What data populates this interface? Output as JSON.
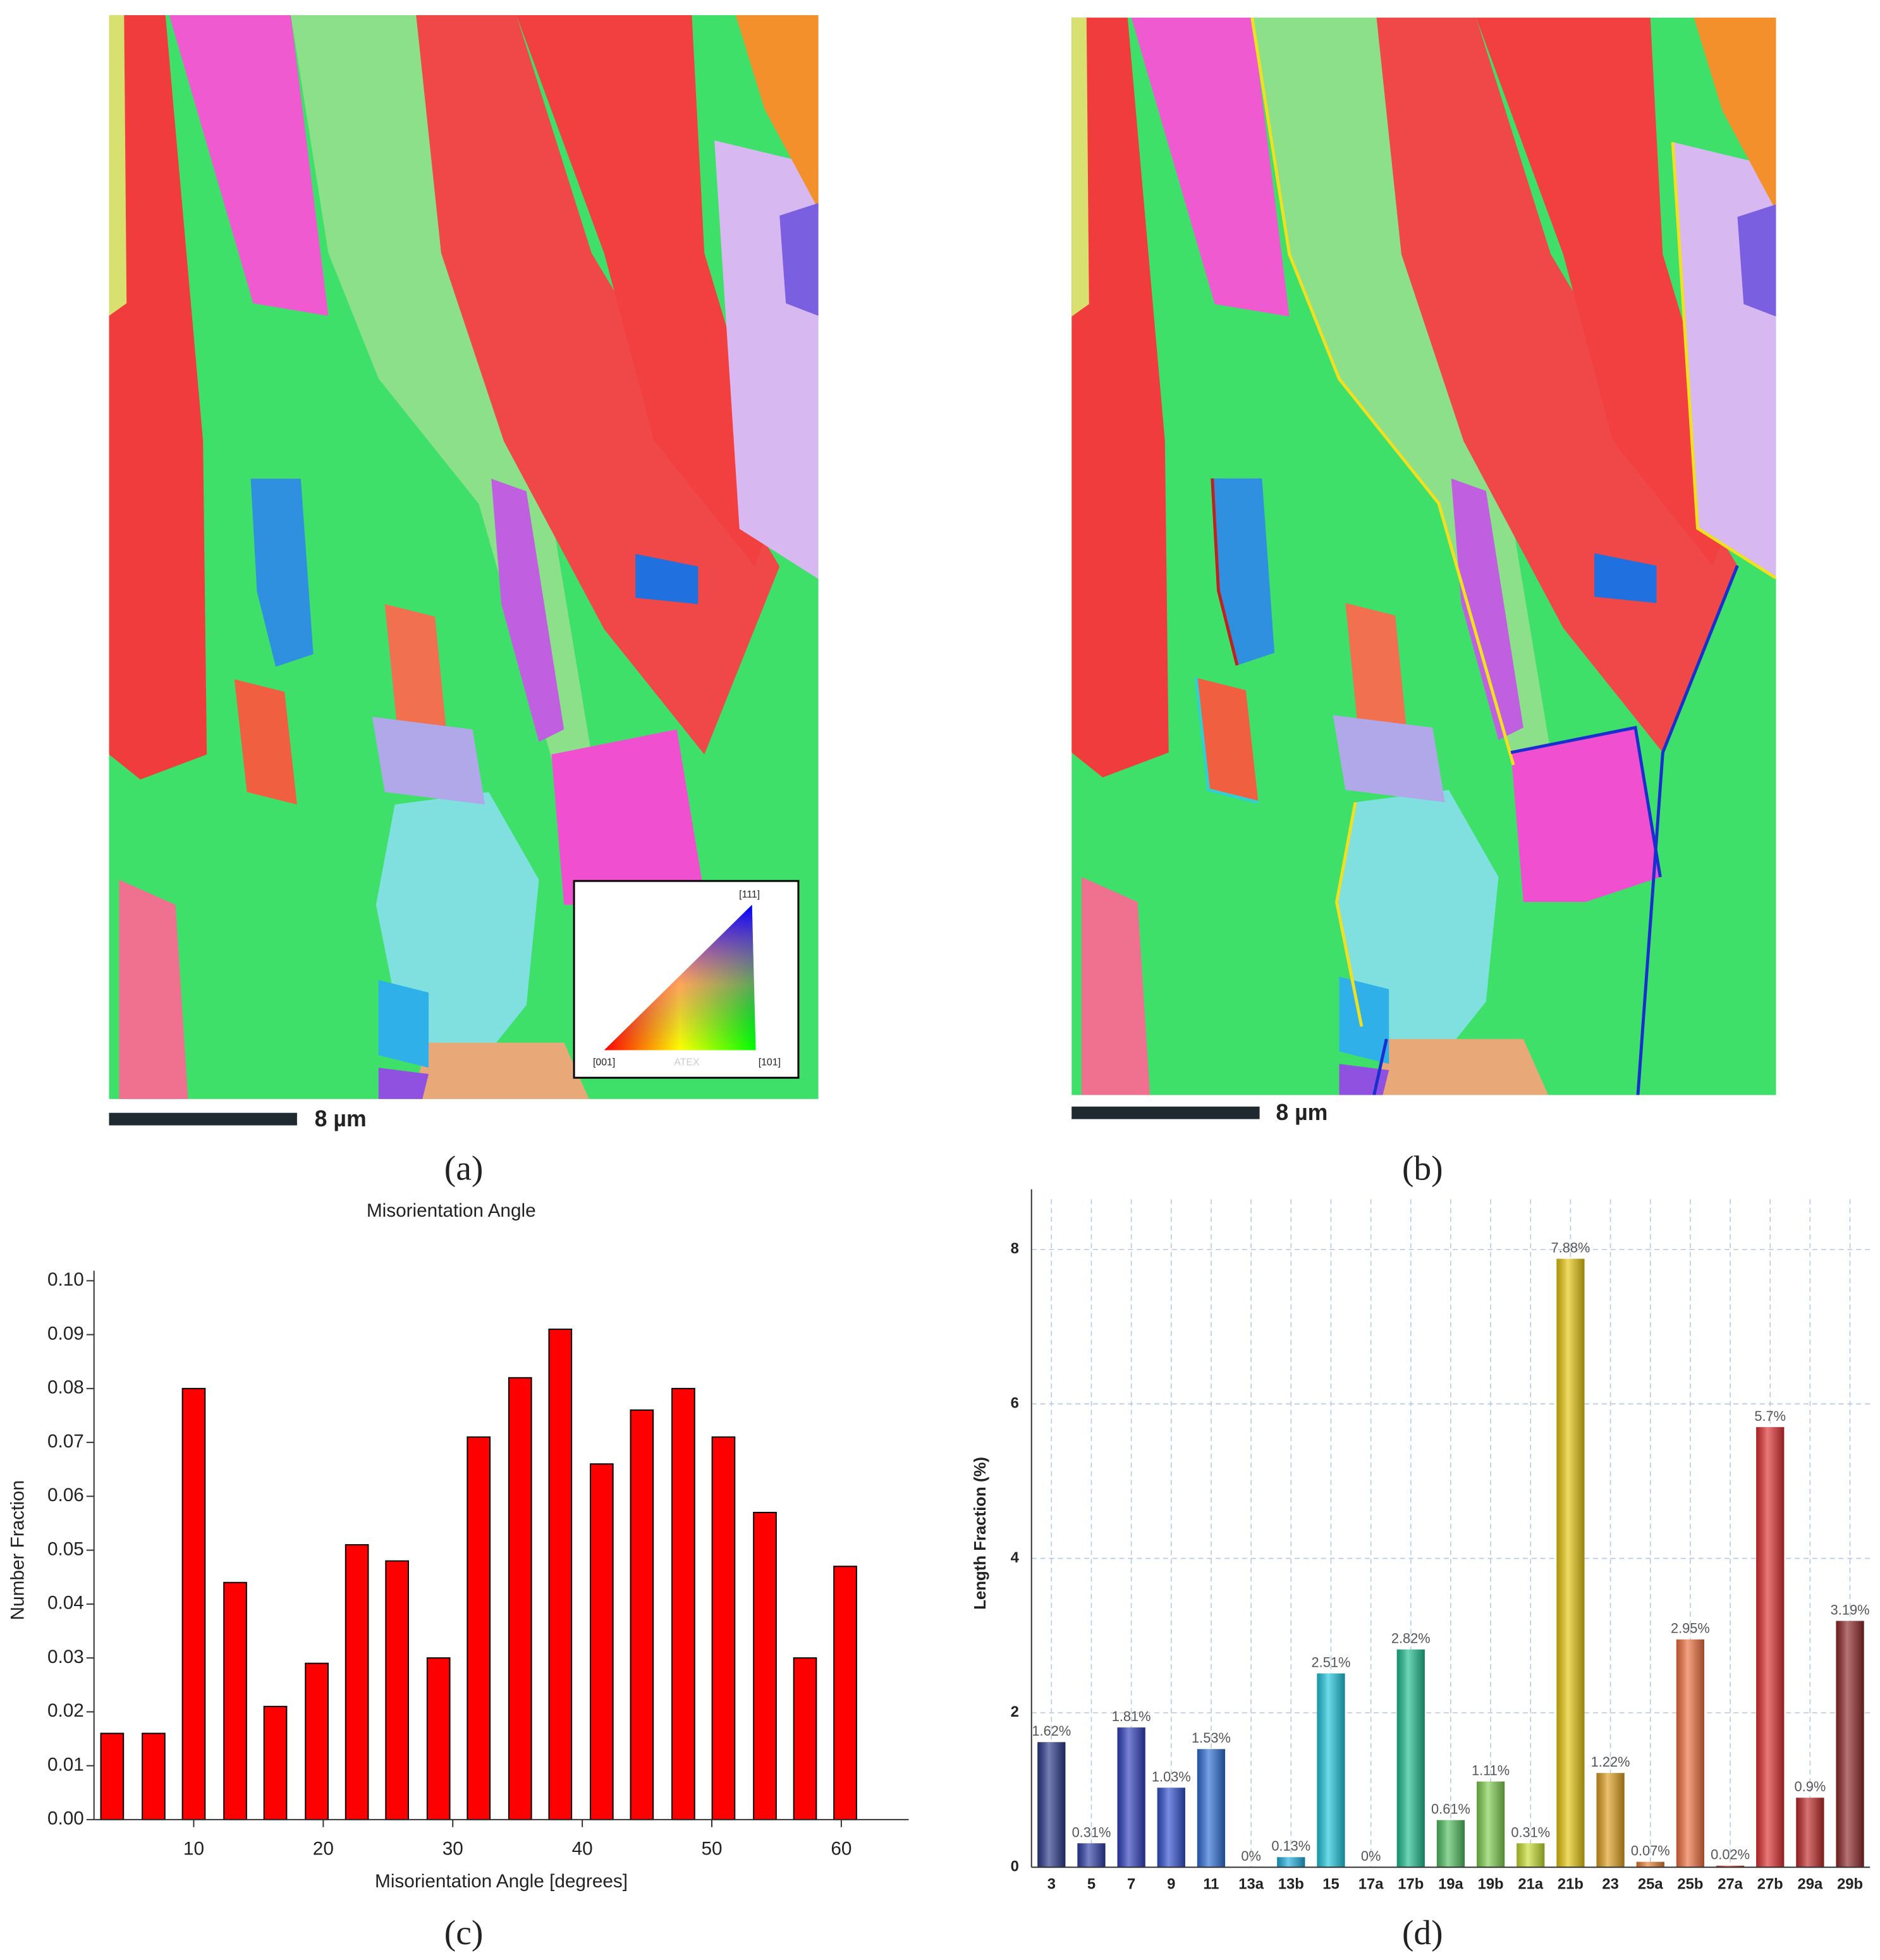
{
  "panels": [
    {
      "label": "(a)",
      "scale_bar": "8 µm",
      "legend": {
        "top": "[111]",
        "left": "[001]",
        "right": "[101]",
        "watermark": "ATEX"
      }
    },
    {
      "label": "(b)",
      "scale_bar": "8 µm"
    },
    {
      "label": "(c)"
    },
    {
      "label": "(d)"
    }
  ],
  "chart_data": [
    {
      "type": "bar",
      "title": "Misorientation Angle",
      "x_label": "Misorientation Angle [degrees]",
      "y_label": "Number Fraction",
      "x": [
        3.7,
        6.9,
        10,
        13.2,
        16.3,
        19.5,
        22.6,
        25.7,
        28.9,
        32,
        35.2,
        38.3,
        41.5,
        44.6,
        47.8,
        50.9,
        54.1,
        57.2,
        60.3
      ],
      "values": [
        0.016,
        0.016,
        0.08,
        0.044,
        0.021,
        0.029,
        0.051,
        0.048,
        0.03,
        0.071,
        0.082,
        0.091,
        0.066,
        0.076,
        0.08,
        0.071,
        0.057,
        0.03,
        0.047
      ],
      "color": "#ff0000",
      "xlim": [
        2.3,
        65.2
      ],
      "xticks": [
        10,
        20,
        30,
        40,
        50,
        60
      ],
      "ylim": [
        0,
        0.1
      ],
      "yticks": [
        {
          "value": 0,
          "label": "0.00"
        },
        {
          "value": 0.01,
          "label": "0.01"
        },
        {
          "value": 0.02,
          "label": "0.02"
        },
        {
          "value": 0.03,
          "label": "0.03"
        },
        {
          "value": 0.04,
          "label": "0.04"
        },
        {
          "value": 0.05,
          "label": "0.05"
        },
        {
          "value": 0.06,
          "label": "0.06"
        },
        {
          "value": 0.07,
          "label": "0.07"
        },
        {
          "value": 0.08,
          "label": "0.08"
        },
        {
          "value": 0.09,
          "label": "0.09"
        },
        {
          "value": 0.1,
          "label": "0.10"
        }
      ],
      "grid": false
    },
    {
      "type": "bar",
      "y_label": "Length Fraction (%)",
      "categories": [
        "3",
        "5",
        "7",
        "9",
        "11",
        "13a",
        "13b",
        "15",
        "17a",
        "17b",
        "19a",
        "19b",
        "21a",
        "21b",
        "23",
        "25a",
        "25b",
        "27a",
        "27b",
        "29a",
        "29b"
      ],
      "values": [
        1.62,
        0.31,
        1.81,
        1.03,
        1.53,
        0,
        0.13,
        2.51,
        0,
        2.82,
        0.61,
        1.11,
        0.31,
        7.88,
        1.22,
        0.07,
        2.95,
        0.02,
        5.7,
        0.9,
        3.19
      ],
      "value_labels": [
        "1.62%",
        "0.31%",
        "1.81%",
        "1.03%",
        "1.53%",
        "0%",
        "0.13%",
        "2.51%",
        "0%",
        "2.82%",
        "0.61%",
        "1.11%",
        "0.31%",
        "7.88%",
        "1.22%",
        "0.07%",
        "2.95%",
        "0.02%",
        "5.7%",
        "0.9%",
        "3.19%"
      ],
      "colors": [
        "#2b3a8c",
        "#2f3fa8",
        "#3140c0",
        "#3050d0",
        "#2f6fd8",
        "#2a90e0",
        "#20b0e0",
        "#20c8e0",
        "#20d0b0",
        "#20c090",
        "#50c060",
        "#80d050",
        "#c8e030",
        "#e8c810",
        "#e0a020",
        "#e88030",
        "#f07040",
        "#e84030",
        "#e03030",
        "#c02828",
        "#902828"
      ],
      "ylim": [
        0,
        8.65
      ],
      "yticks": [
        0,
        2,
        4,
        6,
        8
      ],
      "grid": true
    }
  ]
}
